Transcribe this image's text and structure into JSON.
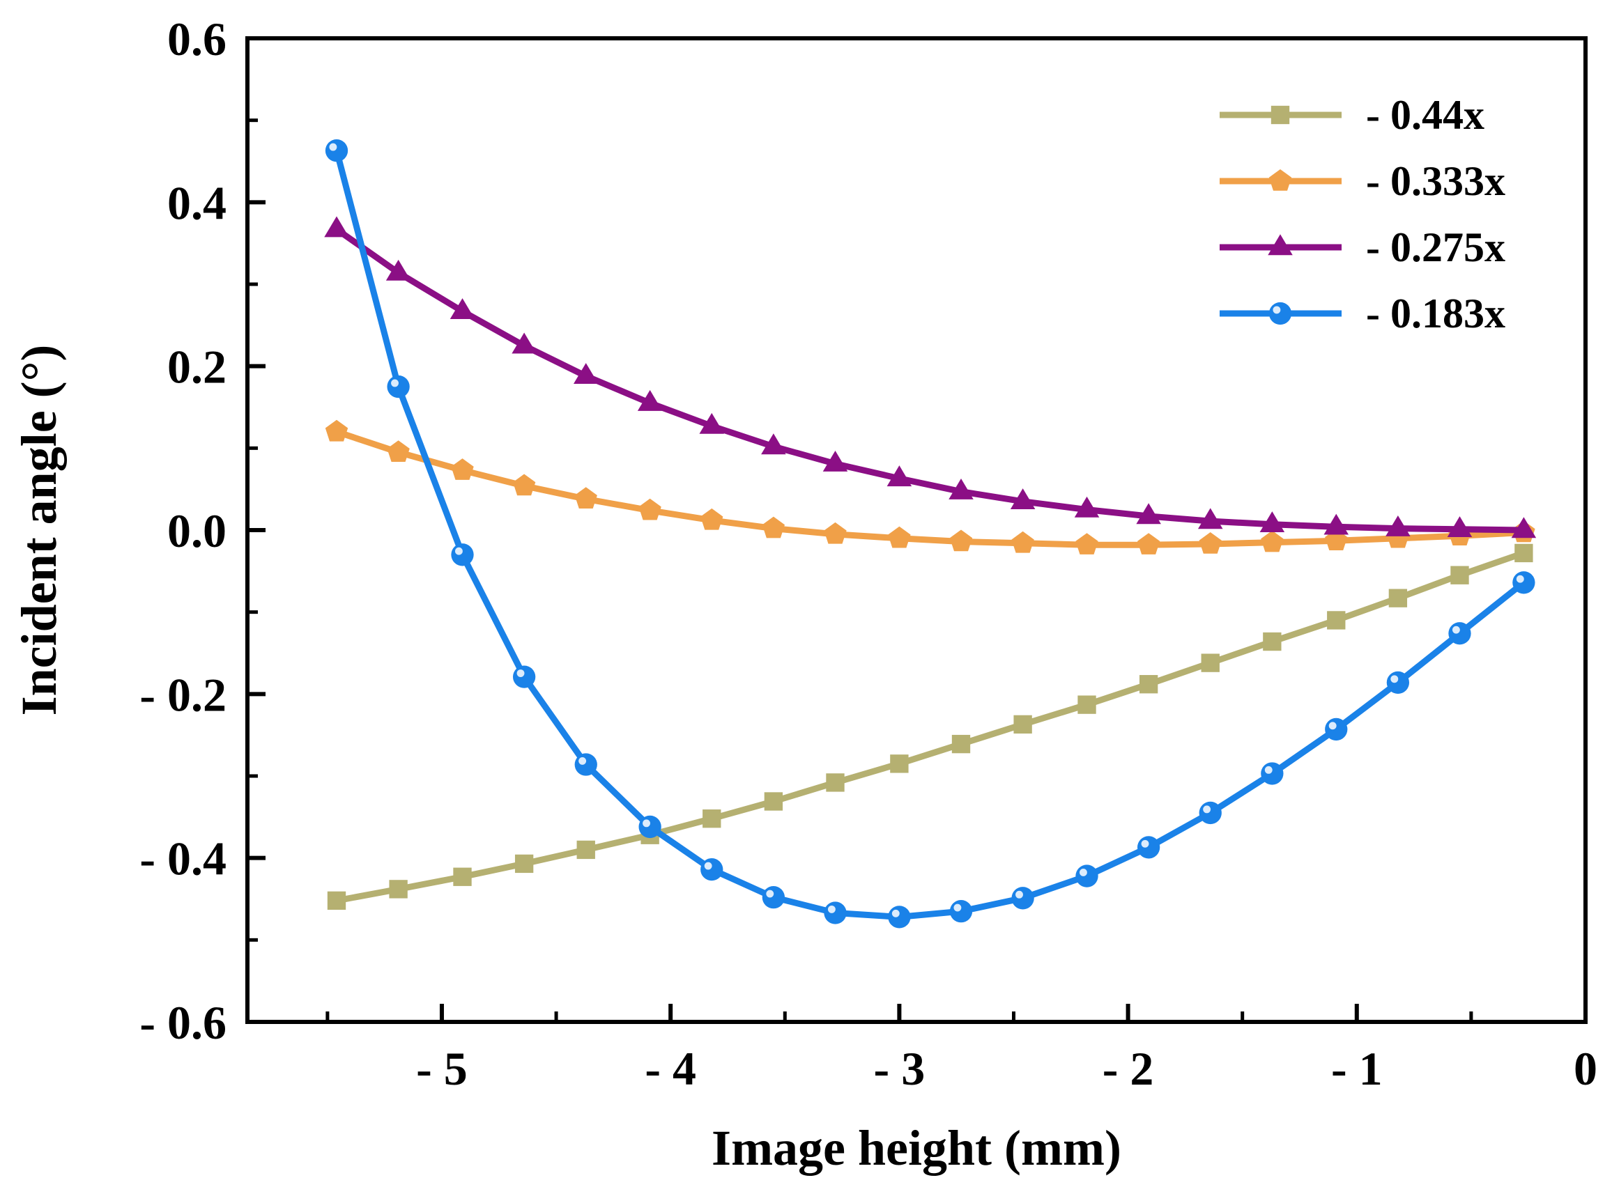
{
  "chart_data": {
    "type": "line",
    "title": "",
    "xlabel": "Image height (mm)",
    "ylabel": "Incident angle (°)",
    "xlim": [
      -5.85,
      0
    ],
    "ylim": [
      -0.6,
      0.6
    ],
    "x_ticks": [
      -5,
      -4,
      -3,
      -2,
      -1,
      0
    ],
    "x_tick_labels": [
      "- 5",
      "- 4",
      "- 3",
      "- 2",
      "- 1",
      "0"
    ],
    "y_ticks": [
      0.6,
      0.4,
      0.2,
      0.0,
      -0.2,
      -0.4,
      -0.6
    ],
    "y_tick_labels": [
      "0.6",
      "0.4",
      "0.2",
      "0.0",
      "- 0.2",
      "- 0.4",
      "- 0.6"
    ],
    "legend_position": "top-right",
    "x": [
      -5.46,
      -5.19,
      -4.91,
      -4.64,
      -4.37,
      -4.09,
      -3.82,
      -3.55,
      -3.28,
      -3.0,
      -2.73,
      -2.46,
      -2.18,
      -1.91,
      -1.64,
      -1.37,
      -1.09,
      -0.82,
      -0.55,
      -0.27
    ],
    "series": [
      {
        "name": "- 0.44x",
        "color": "#b5b071",
        "marker": "square",
        "values": [
          -0.452,
          -0.438,
          -0.423,
          -0.407,
          -0.39,
          -0.372,
          -0.352,
          -0.331,
          -0.308,
          -0.285,
          -0.261,
          -0.237,
          -0.213,
          -0.188,
          -0.162,
          -0.136,
          -0.11,
          -0.083,
          -0.055,
          -0.028
        ]
      },
      {
        "name": "- 0.333x",
        "color": "#f0a048",
        "marker": "pentagon",
        "values": [
          0.12,
          0.095,
          0.073,
          0.054,
          0.038,
          0.024,
          0.012,
          0.002,
          -0.005,
          -0.01,
          -0.014,
          -0.016,
          -0.018,
          -0.018,
          -0.017,
          -0.015,
          -0.013,
          -0.01,
          -0.007,
          -0.003
        ]
      },
      {
        "name": "- 0.275x",
        "color": "#8b0f85",
        "marker": "triangle",
        "values": [
          0.367,
          0.314,
          0.267,
          0.225,
          0.188,
          0.155,
          0.127,
          0.102,
          0.081,
          0.063,
          0.047,
          0.035,
          0.025,
          0.017,
          0.011,
          0.007,
          0.004,
          0.002,
          0.001,
          0.0
        ]
      },
      {
        "name": "- 0.183x",
        "color": "#1a82e8",
        "marker": "circle",
        "values": [
          0.463,
          0.175,
          -0.03,
          -0.179,
          -0.286,
          -0.362,
          -0.414,
          -0.448,
          -0.467,
          -0.472,
          -0.465,
          -0.449,
          -0.422,
          -0.387,
          -0.345,
          -0.297,
          -0.243,
          -0.186,
          -0.126,
          -0.064
        ]
      }
    ]
  }
}
